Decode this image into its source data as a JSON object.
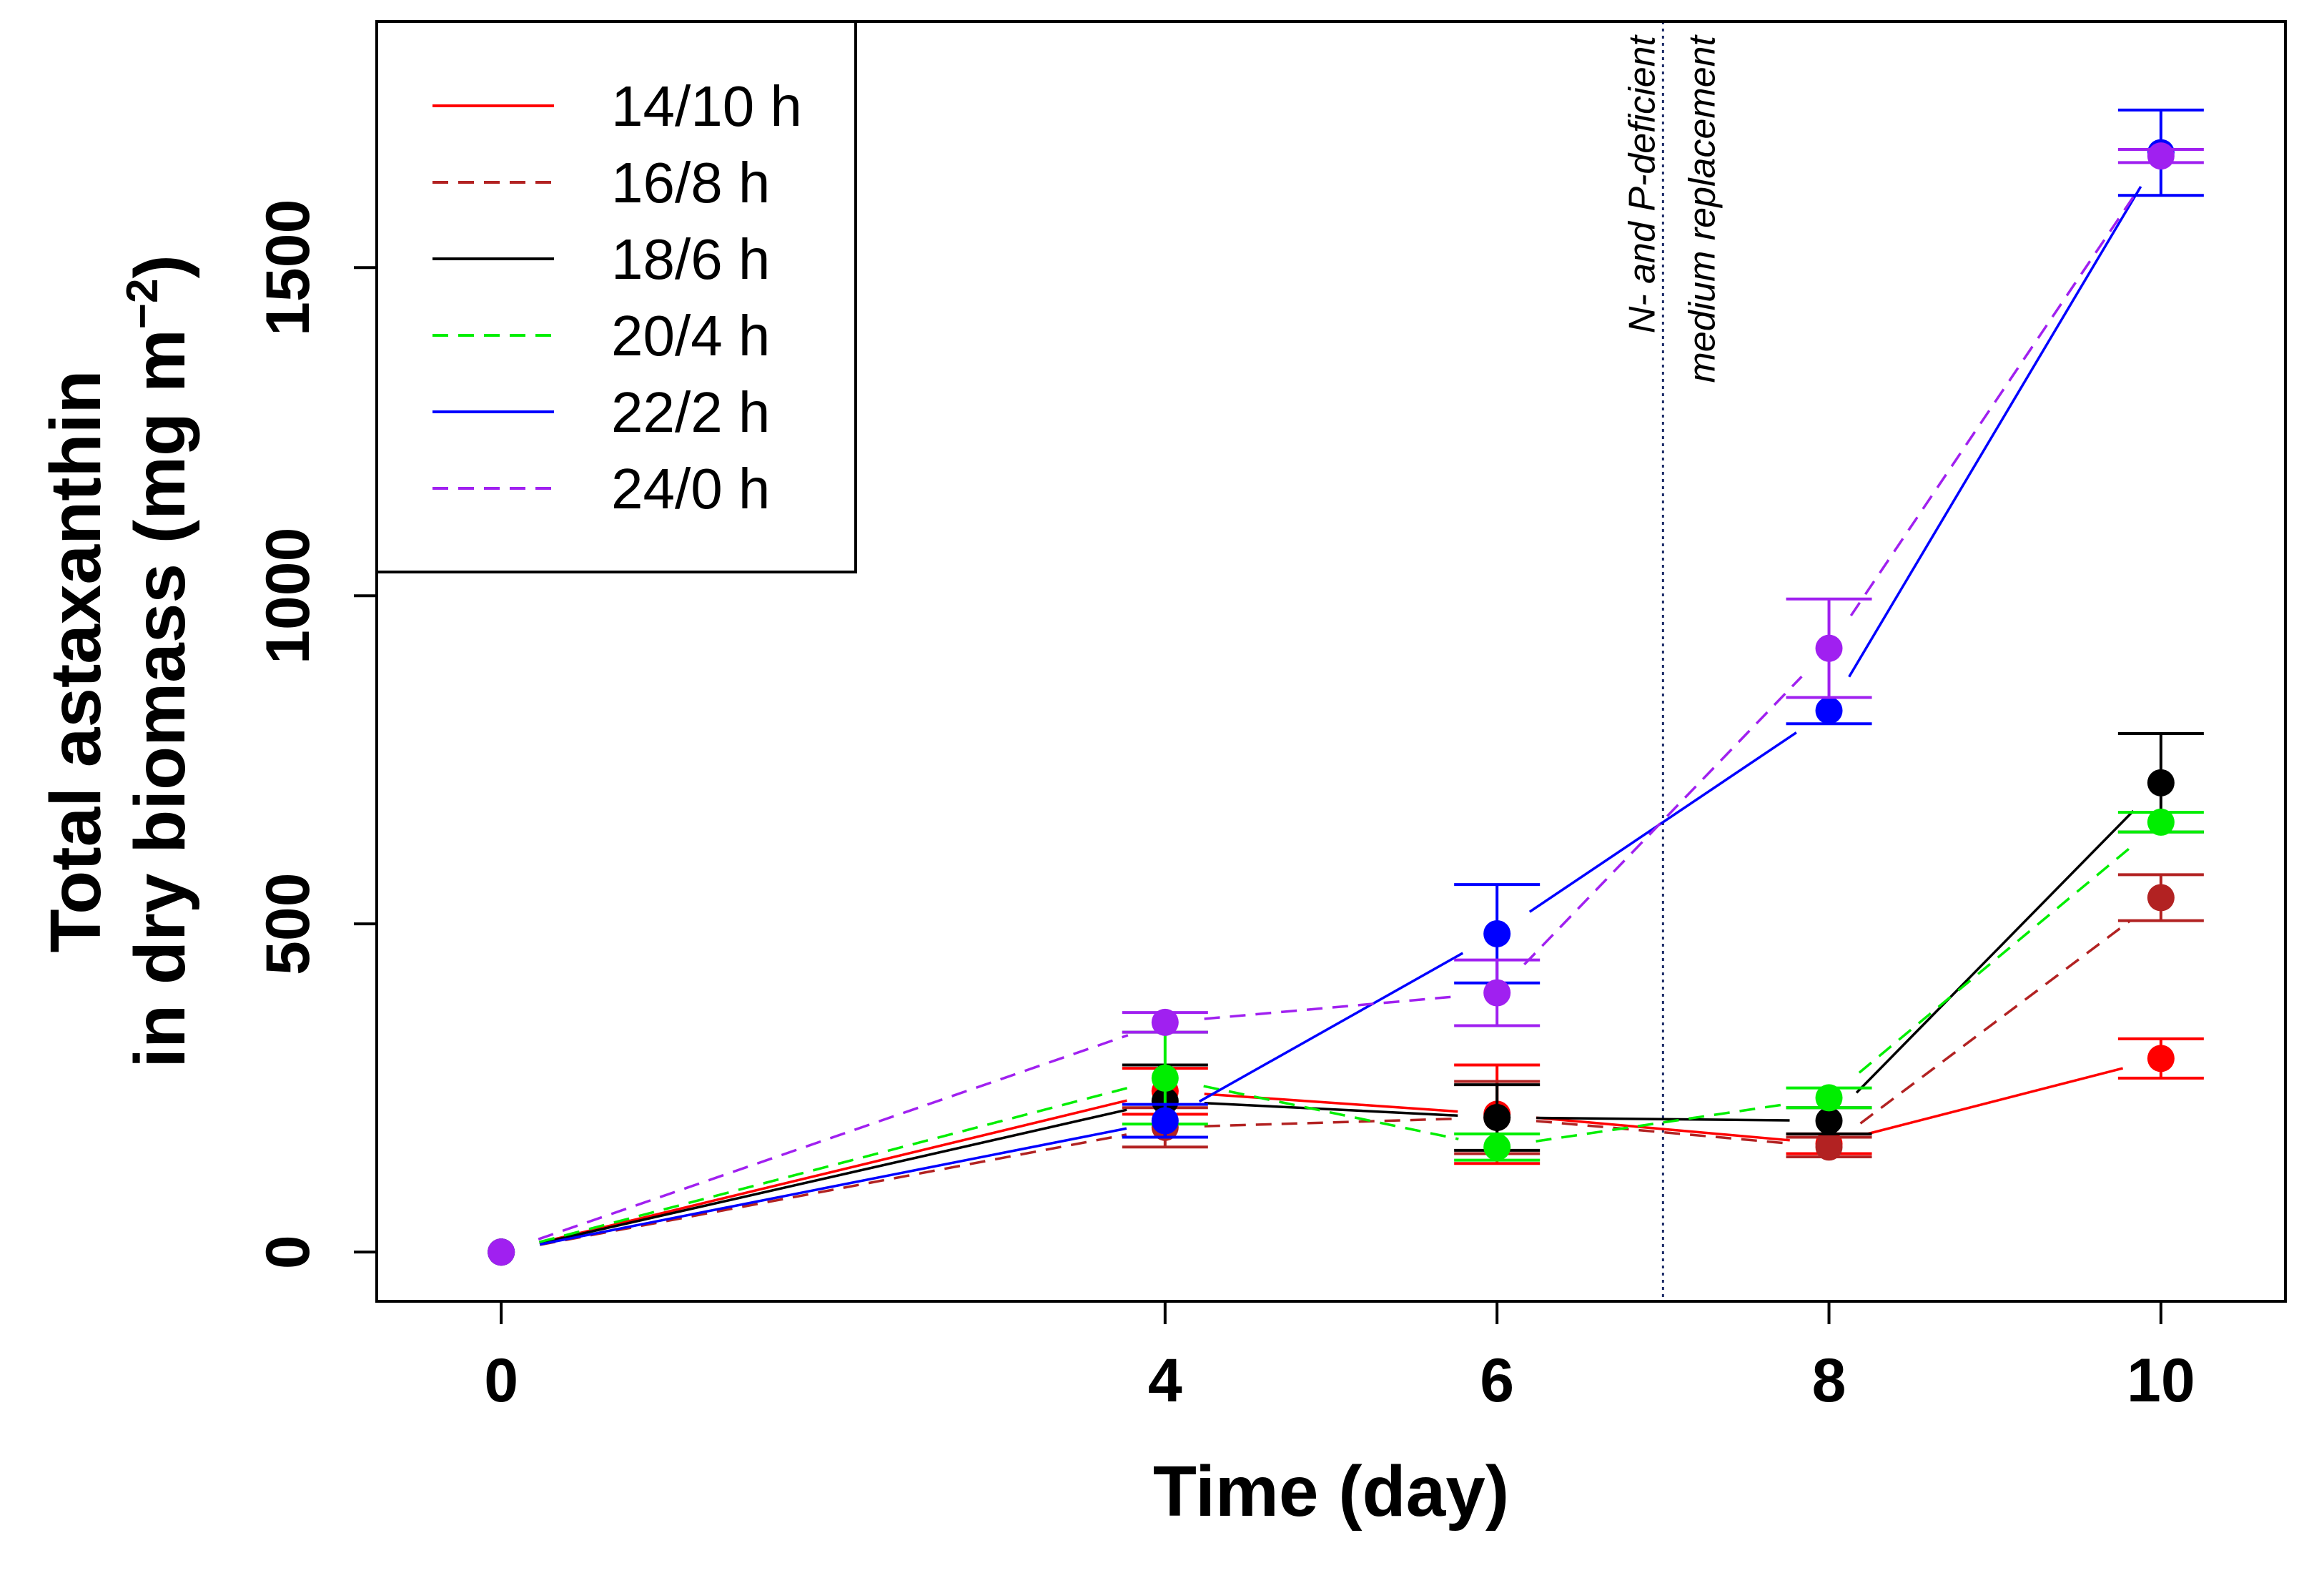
{
  "chart_data": {
    "type": "line",
    "title": "",
    "xlabel": "Time (day)",
    "ylabel_line1": "Total astaxanthin",
    "ylabel_line2": "in dry biomass (mg m",
    "ylabel_exp": "−2",
    "ylabel_close": ")",
    "xlim": [
      -0.75,
      10.75
    ],
    "ylim": [
      -75,
      1875
    ],
    "x_ticks": [
      0,
      4,
      6,
      8,
      10
    ],
    "y_ticks": [
      0,
      500,
      1000,
      1500
    ],
    "x_tick_labels": [
      "0",
      "4",
      "6",
      "8",
      "10"
    ],
    "y_tick_labels": [
      "0",
      "500",
      "1000",
      "1500"
    ],
    "x": [
      0,
      4,
      6,
      8,
      10
    ],
    "annotation": {
      "x": 7,
      "line1": "N- and P-deficient",
      "line2": "medium replacement"
    },
    "legend_position": "top-left",
    "series": [
      {
        "name": "14/10 h",
        "color": "#ff0000",
        "dash": "solid",
        "values": [
          0,
          245,
          210,
          165,
          295
        ],
        "errors": [
          0,
          35,
          75,
          15,
          30
        ]
      },
      {
        "name": "16/8 h",
        "color": "#b22222",
        "dash": "dashed",
        "values": [
          0,
          190,
          205,
          160,
          540
        ],
        "errors": [
          0,
          30,
          55,
          15,
          35
        ]
      },
      {
        "name": "18/6 h",
        "color": "#000000",
        "dash": "solid",
        "values": [
          0,
          230,
          205,
          200,
          715
        ],
        "errors": [
          0,
          55,
          50,
          20,
          75
        ]
      },
      {
        "name": "20/4 h",
        "color": "#00ee00",
        "dash": "dashed",
        "values": [
          0,
          265,
          160,
          235,
          655
        ],
        "errors": [
          0,
          70,
          20,
          15,
          15
        ]
      },
      {
        "name": "22/2 h",
        "color": "#0000ff",
        "dash": "solid",
        "values": [
          0,
          200,
          485,
          825,
          1675
        ],
        "errors": [
          0,
          25,
          75,
          20,
          65
        ]
      },
      {
        "name": "24/0 h",
        "color": "#a020f0",
        "dash": "dashed",
        "values": [
          0,
          350,
          395,
          920,
          1670
        ],
        "errors": [
          0,
          15,
          50,
          75,
          10
        ]
      }
    ]
  }
}
